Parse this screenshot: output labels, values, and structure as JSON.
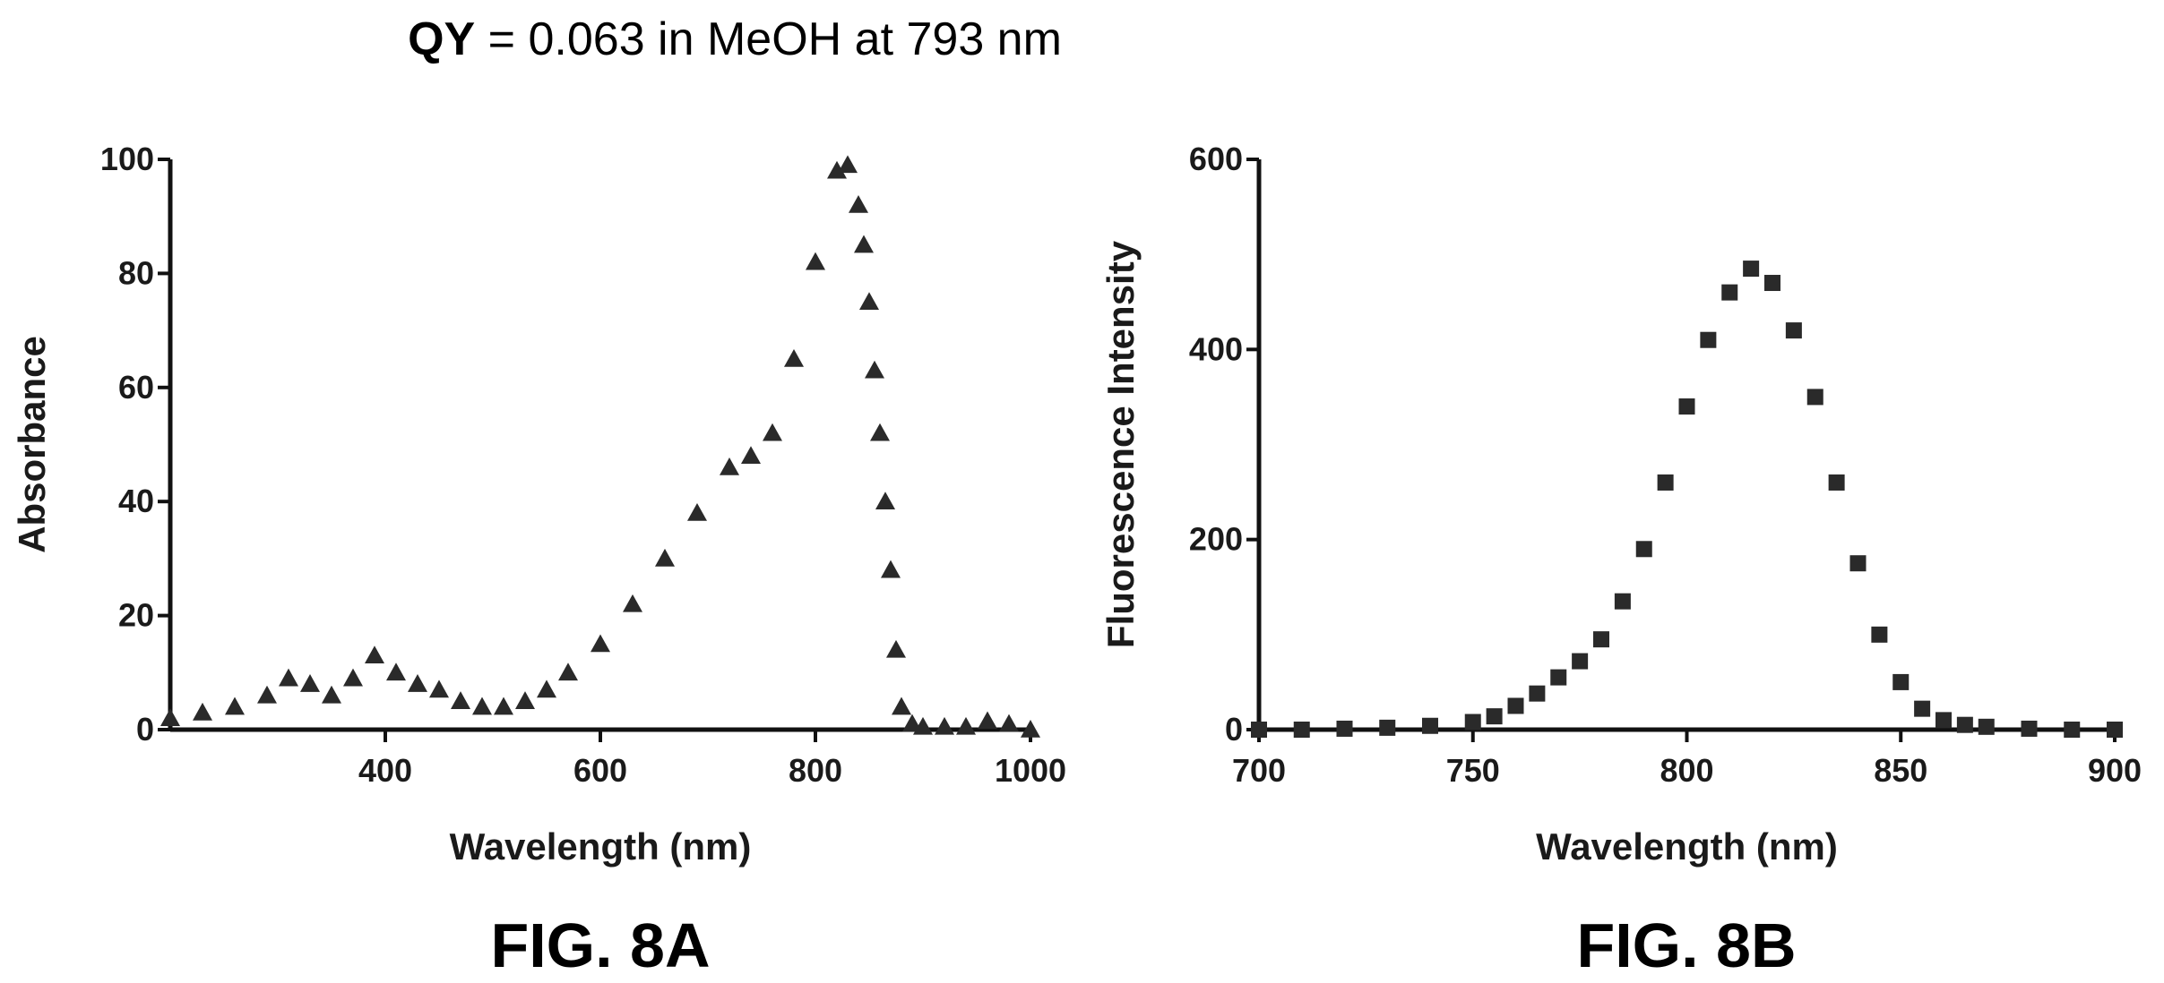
{
  "header": {
    "qy_bold": "QY",
    "qy_rest": " = 0.063 in MeOH at 793 nm"
  },
  "chart_data": [
    {
      "type": "scatter",
      "figure_label": "FIG. 8A",
      "xlabel": "Wavelength (nm)",
      "ylabel": "Absorbance",
      "xlim": [
        200,
        1000
      ],
      "ylim": [
        0,
        100
      ],
      "xticks": [
        400,
        600,
        800,
        1000
      ],
      "yticks": [
        0,
        20,
        40,
        60,
        80,
        100
      ],
      "marker": "triangle",
      "color": "#2a2a2a",
      "x": [
        200,
        230,
        260,
        290,
        310,
        330,
        350,
        370,
        390,
        410,
        430,
        450,
        470,
        490,
        510,
        530,
        550,
        570,
        600,
        630,
        660,
        690,
        720,
        740,
        760,
        780,
        800,
        820,
        830,
        840,
        845,
        850,
        855,
        860,
        865,
        870,
        875,
        880,
        890,
        900,
        920,
        940,
        960,
        980,
        1000
      ],
      "y": [
        2,
        3,
        4,
        6,
        9,
        8,
        6,
        9,
        13,
        10,
        8,
        7,
        5,
        4,
        4,
        5,
        7,
        10,
        15,
        22,
        30,
        38,
        46,
        48,
        52,
        65,
        82,
        98,
        99,
        92,
        85,
        75,
        63,
        52,
        40,
        28,
        14,
        4,
        1,
        0.5,
        0.5,
        0.5,
        1.5,
        1,
        0
      ]
    },
    {
      "type": "scatter",
      "figure_label": "FIG. 8B",
      "xlabel": "Wavelength (nm)",
      "ylabel": "Fluorescence Intensity",
      "xlim": [
        700,
        900
      ],
      "ylim": [
        0,
        600
      ],
      "xticks": [
        700,
        750,
        800,
        850,
        900
      ],
      "yticks": [
        0,
        200,
        400,
        600
      ],
      "marker": "square",
      "color": "#2a2a2a",
      "x": [
        700,
        710,
        720,
        730,
        740,
        750,
        755,
        760,
        765,
        770,
        775,
        780,
        785,
        790,
        795,
        800,
        805,
        810,
        815,
        820,
        825,
        830,
        835,
        840,
        845,
        850,
        855,
        860,
        865,
        870,
        880,
        890,
        900
      ],
      "y": [
        0,
        0,
        1,
        2,
        4,
        8,
        14,
        25,
        38,
        55,
        72,
        95,
        135,
        190,
        260,
        340,
        410,
        460,
        485,
        470,
        420,
        350,
        260,
        175,
        100,
        50,
        22,
        10,
        5,
        3,
        1,
        0,
        0
      ]
    }
  ]
}
